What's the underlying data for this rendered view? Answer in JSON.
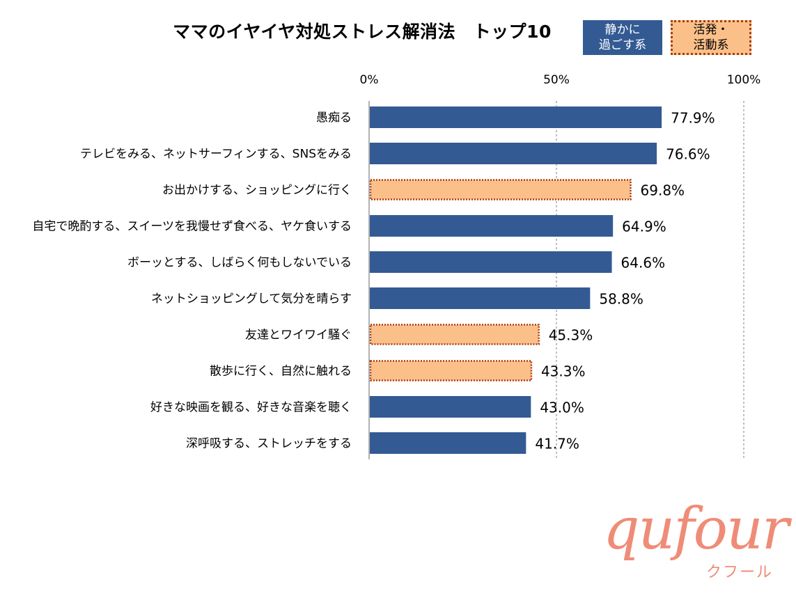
{
  "chart_data": {
    "type": "bar",
    "orientation": "horizontal",
    "title": "ママのイヤイヤ対処ストレス解消法　トップ10",
    "categories": [
      "愚痴る",
      "テレビをみる、ネットサーフィンする、SNSをみる",
      "お出かけする、ショッピングに行く",
      "自宅で晩酌する、スイーツを我慢せず食べる、ヤケ食いする",
      "ボーッとする、しばらく何もしないでいる",
      "ネットショッピングして気分を晴らす",
      "友達とワイワイ騒ぐ",
      "散歩に行く、自然に触れる",
      "好きな映画を観る、好きな音楽を聴く",
      "深呼吸する、ストレッチをする"
    ],
    "values": [
      77.9,
      76.6,
      69.8,
      64.9,
      64.6,
      58.8,
      45.3,
      43.3,
      43.0,
      41.7
    ],
    "value_labels": [
      "77.9%",
      "76.6%",
      "69.8%",
      "64.9%",
      "64.6%",
      "58.8%",
      "45.3%",
      "43.3%",
      "43.0%",
      "41.7%"
    ],
    "groups": [
      "calm",
      "calm",
      "active",
      "calm",
      "calm",
      "calm",
      "active",
      "active",
      "calm",
      "calm"
    ],
    "xlim": [
      0,
      100
    ],
    "ticks": [
      0,
      50,
      100
    ],
    "tick_labels": [
      "0%",
      "50%",
      "100%"
    ],
    "grid": true,
    "legend_position": "top-right",
    "legend": {
      "calm": {
        "label": "静かに\n過ごす系",
        "color": "#335a93"
      },
      "active": {
        "label": "活発・\n活動系",
        "color": "#fbc08a",
        "border_color": "#a83c0e"
      }
    }
  },
  "logo": {
    "name": "qufour",
    "subtitle": "クフール",
    "color": "#ef8c77"
  }
}
